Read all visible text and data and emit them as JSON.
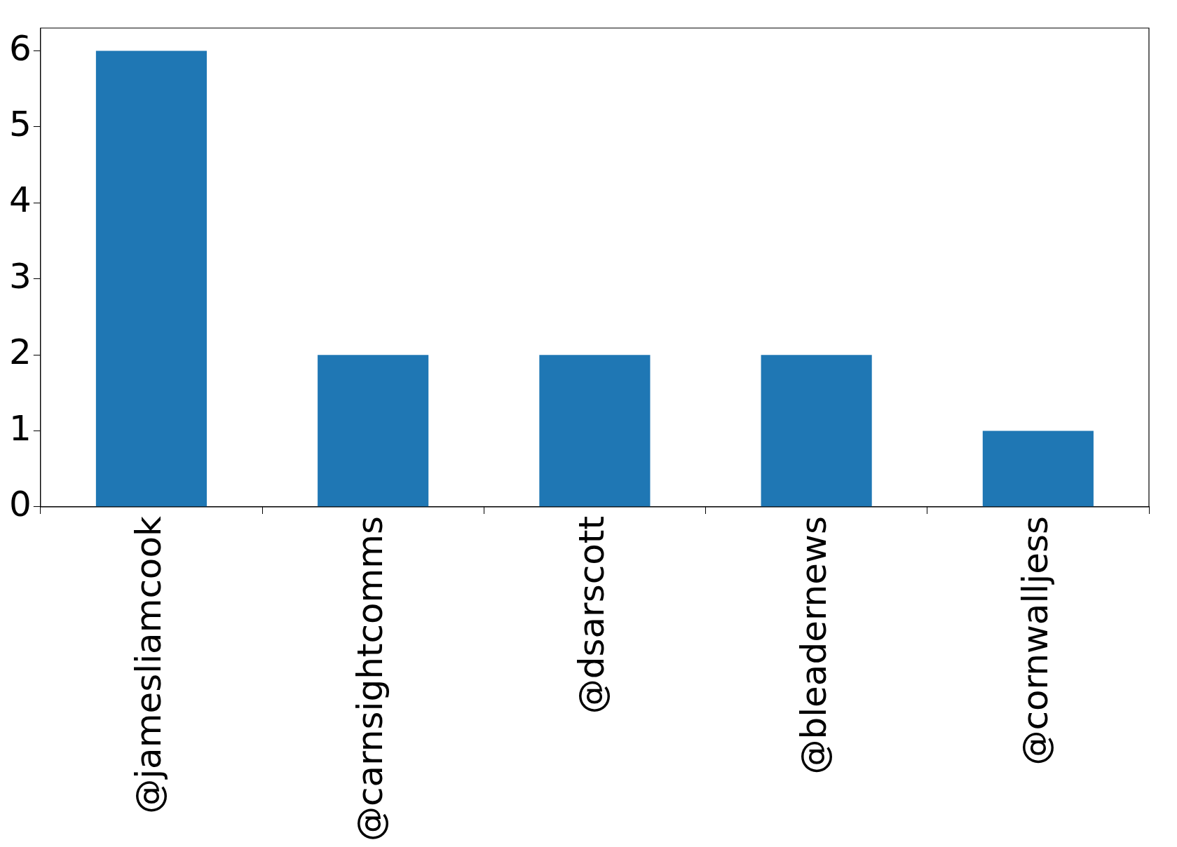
{
  "chart_data": {
    "type": "bar",
    "categories": [
      "@jamesliamcook",
      "@carnsightcomms",
      "@dsarscott",
      "@bleadernews",
      "@cornwalljess"
    ],
    "values": [
      6,
      2,
      2,
      2,
      1
    ],
    "color": "#1f77b4",
    "ylim": [
      0,
      6.3
    ],
    "yticks": [
      0,
      1,
      2,
      3,
      4,
      5,
      6
    ],
    "grid": false,
    "legend": false
  }
}
